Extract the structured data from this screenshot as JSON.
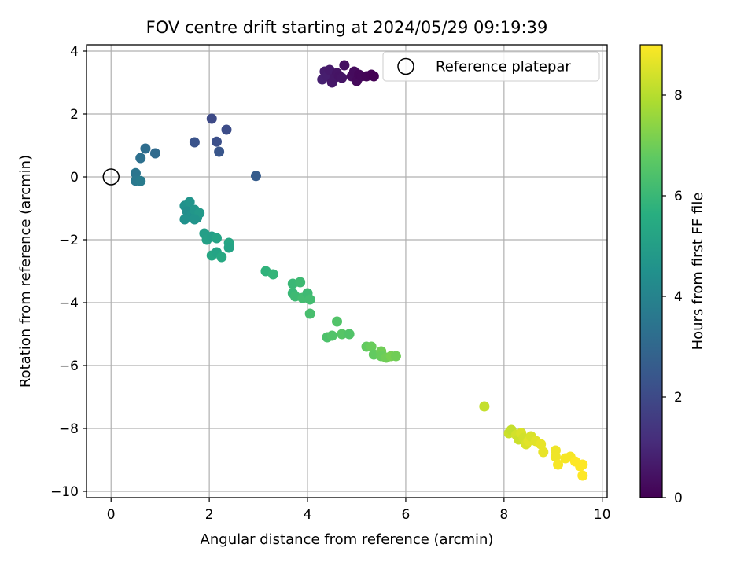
{
  "chart_data": {
    "type": "scatter",
    "title": "FOV centre drift starting at 2024/05/29 09:19:39",
    "xlabel": "Angular distance from reference (arcmin)",
    "ylabel": "Rotation from reference (arcmin)",
    "xlim": [
      -0.5,
      10.1
    ],
    "ylim": [
      -10.2,
      4.2
    ],
    "xticks": [
      0,
      2,
      4,
      6,
      8,
      10
    ],
    "yticks": [
      -10,
      -8,
      -6,
      -4,
      -2,
      0,
      2,
      4
    ],
    "xtick_labels": [
      "0",
      "2",
      "4",
      "6",
      "8",
      "10"
    ],
    "ytick_labels": [
      "−10",
      "−8",
      "−6",
      "−4",
      "−2",
      "0",
      "2",
      "4"
    ],
    "grid": true,
    "colormap": "viridis",
    "colorbar": {
      "label": "Hours from first FF file",
      "range": [
        0,
        9
      ],
      "ticks": [
        0,
        2,
        4,
        6,
        8
      ],
      "tick_labels": [
        "0",
        "2",
        "4",
        "6",
        "8"
      ]
    },
    "legend": {
      "position": "top-right",
      "entries": [
        {
          "label": "Reference platepar",
          "marker": "open-circle"
        }
      ]
    },
    "reference_point": {
      "x": 0,
      "y": 0
    },
    "points": [
      {
        "x": 4.3,
        "y": 3.1,
        "c": 0.8
      },
      {
        "x": 4.35,
        "y": 3.35,
        "c": 0.7
      },
      {
        "x": 4.4,
        "y": 3.2,
        "c": 0.75
      },
      {
        "x": 4.45,
        "y": 3.4,
        "c": 0.65
      },
      {
        "x": 4.5,
        "y": 3.0,
        "c": 0.6
      },
      {
        "x": 4.55,
        "y": 3.15,
        "c": 0.55
      },
      {
        "x": 4.6,
        "y": 3.3,
        "c": 0.5
      },
      {
        "x": 4.65,
        "y": 3.2,
        "c": 0.45
      },
      {
        "x": 4.7,
        "y": 3.15,
        "c": 0.5
      },
      {
        "x": 4.75,
        "y": 3.55,
        "c": 0.4
      },
      {
        "x": 4.9,
        "y": 3.2,
        "c": 0.3
      },
      {
        "x": 4.95,
        "y": 3.35,
        "c": 0.25
      },
      {
        "x": 5.0,
        "y": 3.05,
        "c": 0.2
      },
      {
        "x": 5.05,
        "y": 3.25,
        "c": 0.15
      },
      {
        "x": 5.1,
        "y": 3.2,
        "c": 0.15
      },
      {
        "x": 5.2,
        "y": 3.2,
        "c": 0.1
      },
      {
        "x": 5.3,
        "y": 3.25,
        "c": 0.05
      },
      {
        "x": 5.35,
        "y": 3.2,
        "c": 0.0
      },
      {
        "x": 2.05,
        "y": 1.85,
        "c": 2.0
      },
      {
        "x": 2.35,
        "y": 1.5,
        "c": 2.1
      },
      {
        "x": 1.7,
        "y": 1.1,
        "c": 2.3
      },
      {
        "x": 2.15,
        "y": 1.12,
        "c": 2.2
      },
      {
        "x": 2.2,
        "y": 0.8,
        "c": 2.4
      },
      {
        "x": 2.95,
        "y": 0.03,
        "c": 2.6
      },
      {
        "x": 0.7,
        "y": 0.9,
        "c": 3.2
      },
      {
        "x": 0.9,
        "y": 0.75,
        "c": 3.1
      },
      {
        "x": 0.6,
        "y": 0.6,
        "c": 3.3
      },
      {
        "x": 0.5,
        "y": 0.12,
        "c": 3.5
      },
      {
        "x": 0.5,
        "y": -0.12,
        "c": 3.6
      },
      {
        "x": 0.6,
        "y": -0.13,
        "c": 3.7
      },
      {
        "x": 1.5,
        "y": -0.92,
        "c": 4.5
      },
      {
        "x": 1.6,
        "y": -0.8,
        "c": 4.6
      },
      {
        "x": 1.55,
        "y": -1.1,
        "c": 4.4
      },
      {
        "x": 1.65,
        "y": -1.2,
        "c": 4.5
      },
      {
        "x": 1.7,
        "y": -1.05,
        "c": 4.7
      },
      {
        "x": 1.75,
        "y": -1.3,
        "c": 4.6
      },
      {
        "x": 1.8,
        "y": -1.15,
        "c": 4.8
      },
      {
        "x": 1.5,
        "y": -1.35,
        "c": 4.5
      },
      {
        "x": 1.7,
        "y": -1.35,
        "c": 4.6
      },
      {
        "x": 1.9,
        "y": -1.8,
        "c": 5.0
      },
      {
        "x": 1.95,
        "y": -2.0,
        "c": 5.1
      },
      {
        "x": 2.05,
        "y": -1.9,
        "c": 5.0
      },
      {
        "x": 2.15,
        "y": -1.95,
        "c": 5.2
      },
      {
        "x": 2.05,
        "y": -2.5,
        "c": 5.3
      },
      {
        "x": 2.15,
        "y": -2.4,
        "c": 5.2
      },
      {
        "x": 2.25,
        "y": -2.55,
        "c": 5.4
      },
      {
        "x": 2.4,
        "y": -2.1,
        "c": 5.3
      },
      {
        "x": 2.4,
        "y": -2.25,
        "c": 5.2
      },
      {
        "x": 3.15,
        "y": -3.0,
        "c": 5.8
      },
      {
        "x": 3.3,
        "y": -3.1,
        "c": 5.9
      },
      {
        "x": 3.7,
        "y": -3.4,
        "c": 6.0
      },
      {
        "x": 3.85,
        "y": -3.35,
        "c": 6.1
      },
      {
        "x": 3.7,
        "y": -3.7,
        "c": 6.0
      },
      {
        "x": 3.75,
        "y": -3.8,
        "c": 6.1
      },
      {
        "x": 3.9,
        "y": -3.85,
        "c": 6.2
      },
      {
        "x": 4.0,
        "y": -3.7,
        "c": 6.1
      },
      {
        "x": 4.05,
        "y": -3.9,
        "c": 6.2
      },
      {
        "x": 4.05,
        "y": -4.35,
        "c": 6.3
      },
      {
        "x": 4.6,
        "y": -4.6,
        "c": 6.5
      },
      {
        "x": 4.4,
        "y": -5.1,
        "c": 6.4
      },
      {
        "x": 4.5,
        "y": -5.05,
        "c": 6.5
      },
      {
        "x": 4.7,
        "y": -5.0,
        "c": 6.6
      },
      {
        "x": 4.85,
        "y": -5.0,
        "c": 6.5
      },
      {
        "x": 5.2,
        "y": -5.4,
        "c": 6.8
      },
      {
        "x": 5.3,
        "y": -5.4,
        "c": 6.9
      },
      {
        "x": 5.35,
        "y": -5.65,
        "c": 6.8
      },
      {
        "x": 5.5,
        "y": -5.55,
        "c": 7.0
      },
      {
        "x": 5.5,
        "y": -5.7,
        "c": 6.9
      },
      {
        "x": 5.6,
        "y": -5.75,
        "c": 7.0
      },
      {
        "x": 5.7,
        "y": -5.7,
        "c": 7.1
      },
      {
        "x": 5.8,
        "y": -5.7,
        "c": 7.0
      },
      {
        "x": 7.6,
        "y": -7.3,
        "c": 8.2
      },
      {
        "x": 8.1,
        "y": -8.15,
        "c": 8.3
      },
      {
        "x": 8.15,
        "y": -8.05,
        "c": 8.2
      },
      {
        "x": 8.25,
        "y": -8.2,
        "c": 8.4
      },
      {
        "x": 8.3,
        "y": -8.35,
        "c": 8.3
      },
      {
        "x": 8.35,
        "y": -8.15,
        "c": 8.5
      },
      {
        "x": 8.4,
        "y": -8.3,
        "c": 8.4
      },
      {
        "x": 8.45,
        "y": -8.5,
        "c": 8.5
      },
      {
        "x": 8.5,
        "y": -8.4,
        "c": 8.6
      },
      {
        "x": 8.55,
        "y": -8.25,
        "c": 8.5
      },
      {
        "x": 8.65,
        "y": -8.4,
        "c": 8.6
      },
      {
        "x": 8.75,
        "y": -8.5,
        "c": 8.7
      },
      {
        "x": 8.8,
        "y": -8.75,
        "c": 8.7
      },
      {
        "x": 9.05,
        "y": -8.7,
        "c": 8.8
      },
      {
        "x": 9.05,
        "y": -8.9,
        "c": 8.8
      },
      {
        "x": 9.1,
        "y": -9.15,
        "c": 8.9
      },
      {
        "x": 9.25,
        "y": -8.95,
        "c": 8.9
      },
      {
        "x": 9.35,
        "y": -8.9,
        "c": 8.9
      },
      {
        "x": 9.45,
        "y": -9.05,
        "c": 9.0
      },
      {
        "x": 9.55,
        "y": -9.2,
        "c": 9.0
      },
      {
        "x": 9.6,
        "y": -9.5,
        "c": 9.0
      },
      {
        "x": 9.6,
        "y": -9.15,
        "c": 9.0
      }
    ]
  }
}
